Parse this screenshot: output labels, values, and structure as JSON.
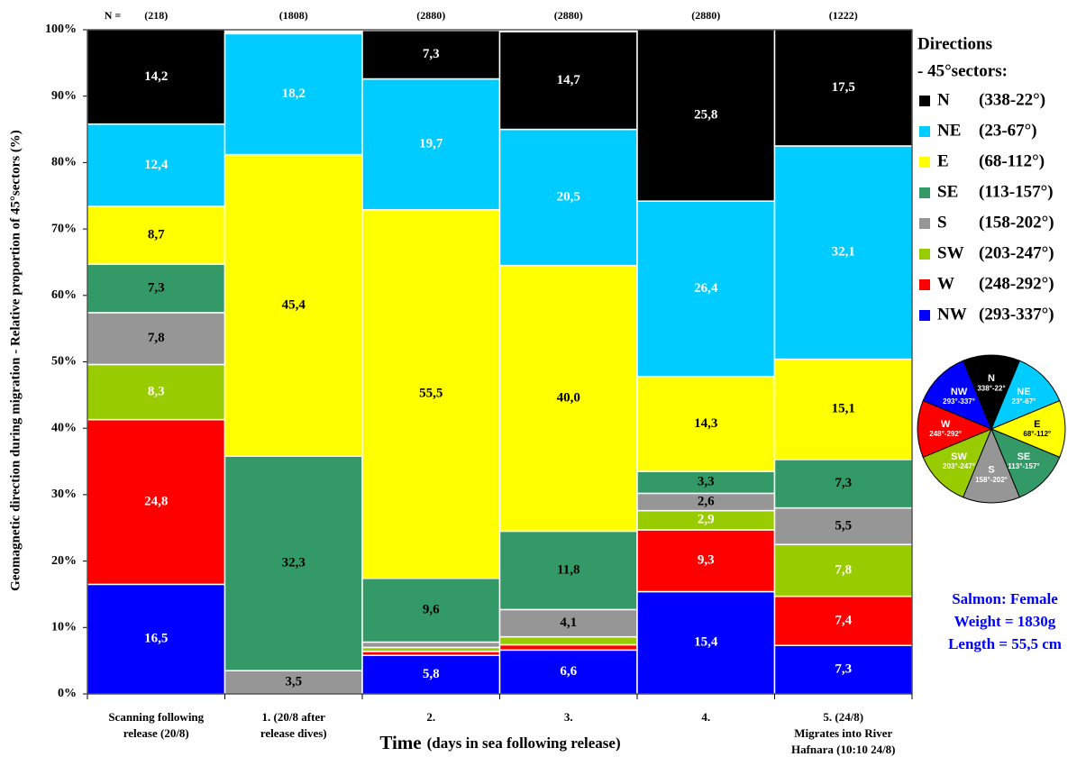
{
  "chart_data": {
    "type": "stacked_bar",
    "ylabel": "Geomagnetic direction during migration - Relative proportion of 45°sectors (%)",
    "xlabel": "Time",
    "xlabel_detail": "(days in sea following release)",
    "n_title": "N =",
    "n_counts": [
      218,
      1808,
      2880,
      2880,
      2880,
      1222
    ],
    "n_labels": [
      "(218)",
      "(1808)",
      "(2880)",
      "(2880)",
      "(2880)",
      "(1222)"
    ],
    "categories": [
      "Scanning following\nrelease (20/8)",
      "1. (20/8 after\nrelease dives)",
      "2.",
      "3.",
      "4.",
      "5. (24/8)\nMigrates into River\nHafnara (10:10 24/8)"
    ],
    "ylim": [
      0,
      100
    ],
    "yticks": [
      {
        "value": 0,
        "label": "0%"
      },
      {
        "value": 10,
        "label": "10%"
      },
      {
        "value": 20,
        "label": "20%"
      },
      {
        "value": 30,
        "label": "30%"
      },
      {
        "value": 40,
        "label": "40%"
      },
      {
        "value": 50,
        "label": "50%"
      },
      {
        "value": 60,
        "label": "60%"
      },
      {
        "value": 70,
        "label": "70%"
      },
      {
        "value": 80,
        "label": "80%"
      },
      {
        "value": 90,
        "label": "90%"
      },
      {
        "value": 100,
        "label": "100%"
      }
    ],
    "grid": false,
    "legend_title": [
      "Directions",
      "- 45°sectors:"
    ],
    "series": [
      {
        "name": "NW",
        "range": "(293-337°)",
        "pie_range": "293°-337°",
        "color": "#0000ff",
        "label_color": "#ffffff",
        "pie_label_color": "#ffffff",
        "values": [
          16.5,
          0,
          5.8,
          6.6,
          15.4,
          7.3
        ],
        "value_labels": [
          "16,5",
          null,
          "5,8",
          "6,6",
          "15,4",
          "7,3"
        ]
      },
      {
        "name": "W",
        "range": "(248-292°)",
        "pie_range": "248°-292°",
        "color": "#ff0000",
        "label_color": "#ffffff",
        "pie_label_color": "#ffffff",
        "values": [
          24.8,
          0,
          0.6,
          0.8,
          9.3,
          7.4
        ],
        "value_labels": [
          "24,8",
          null,
          null,
          null,
          "9,3",
          "7,4"
        ]
      },
      {
        "name": "SW",
        "range": "(203-247°)",
        "pie_range": "203°-247°",
        "color": "#99cc00",
        "label_color": "#ffffff",
        "pie_label_color": "#ffffff",
        "values": [
          8.3,
          0,
          0.6,
          1.2,
          2.9,
          7.8
        ],
        "value_labels": [
          "8,3",
          null,
          null,
          null,
          "2,9",
          "7,8"
        ]
      },
      {
        "name": "S",
        "range": "(158-202°)",
        "pie_range": "158°-202°",
        "color": "#969696",
        "label_color": "#000000",
        "pie_label_color": "#ffffff",
        "values": [
          7.8,
          3.5,
          0.8,
          4.1,
          2.6,
          5.5
        ],
        "value_labels": [
          "7,8",
          "3,5",
          null,
          "4,1",
          "2,6",
          "5,5"
        ]
      },
      {
        "name": "SE",
        "range": "(113-157°)",
        "pie_range": "113°-157°",
        "color": "#339966",
        "label_color": "#000000",
        "pie_label_color": "#ffffff",
        "values": [
          7.3,
          32.3,
          9.6,
          11.8,
          3.3,
          7.3
        ],
        "value_labels": [
          "7,3",
          "32,3",
          "9,6",
          "11,8",
          "3,3",
          "7,3"
        ]
      },
      {
        "name": "E",
        "range": "(68-112°)",
        "pie_range": "68°-112°",
        "color": "#ffff00",
        "label_color": "#000000",
        "pie_label_color": "#000000",
        "values": [
          8.7,
          45.4,
          55.5,
          40.0,
          14.3,
          15.1
        ],
        "value_labels": [
          "8,7",
          "45,4",
          "55,5",
          "40,0",
          "14,3",
          "15,1"
        ]
      },
      {
        "name": "NE",
        "range": "(23-67°)",
        "pie_range": "23°-67°",
        "color": "#00ccff",
        "label_color": "#ffffff",
        "pie_label_color": "#ffffff",
        "values": [
          12.4,
          18.2,
          19.7,
          20.5,
          26.4,
          32.1
        ],
        "value_labels": [
          "12,4",
          "18,2",
          "19,7",
          "20,5",
          "26,4",
          "32,1"
        ]
      },
      {
        "name": "N",
        "range": "(338-22°)",
        "pie_range": "338°-22°",
        "color": "#000000",
        "label_color": "#ffffff",
        "pie_label_color": "#ffffff",
        "values": [
          14.2,
          0,
          7.3,
          14.7,
          25.8,
          17.5
        ],
        "value_labels": [
          "14,2",
          null,
          "7,3",
          "14,7",
          "25,8",
          "17,5"
        ]
      }
    ],
    "annotations": [
      "Salmon: Female",
      "Weight = 1830g",
      "Length = 55,5 cm"
    ],
    "annotation_color": "#0000ff"
  }
}
